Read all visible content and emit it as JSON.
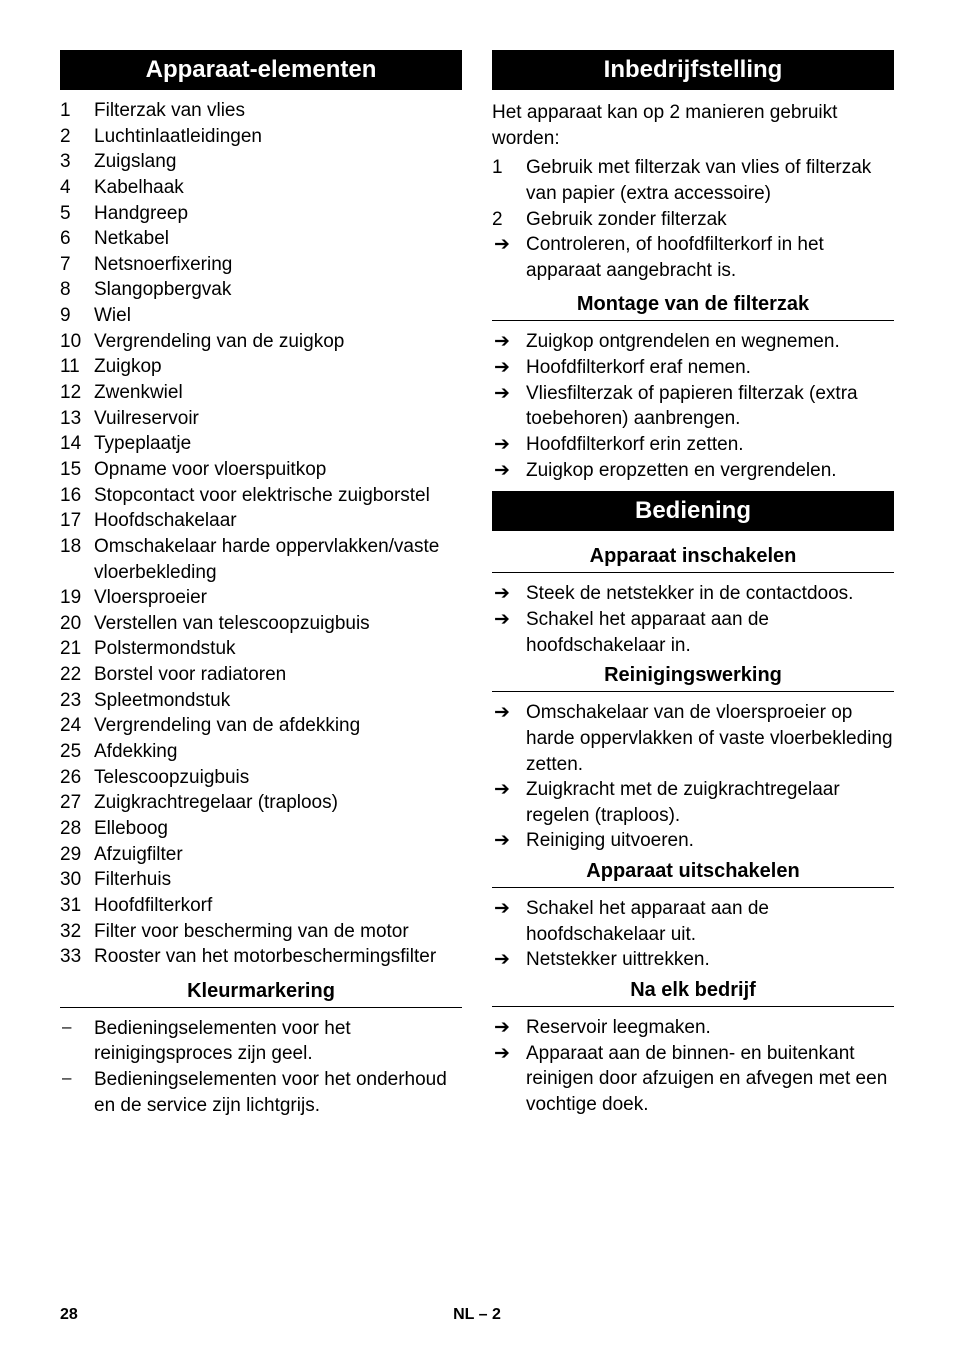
{
  "left": {
    "h1": "Apparaat-elementen",
    "items": [
      "Filterzak van vlies",
      "Luchtinlaatleidingen",
      "Zuigslang",
      "Kabelhaak",
      "Handgreep",
      "Netkabel",
      "Netsnoerfixering",
      "Slangopbergvak",
      "Wiel",
      "Vergrendeling van de zuigkop",
      "Zuigkop",
      "Zwenkwiel",
      "Vuilreservoir",
      "Typeplaatje",
      "Opname voor vloerspuitkop",
      "Stopcontact voor elektrische zuigborstel",
      "Hoofdschakelaar",
      "Omschakelaar harde oppervlakken/vaste vloerbekleding",
      "Vloersproeier",
      "Verstellen van telescoopzuigbuis",
      "Polstermondstuk",
      "Borstel voor radiatoren",
      "Spleetmondstuk",
      "Vergrendeling van de afdekking",
      "Afdekking",
      "Telescoopzuigbuis",
      "Zuigkrachtregelaar (traploos)",
      "Elleboog",
      "Afzuigfilter",
      "Filterhuis",
      "Hoofdfilterkorf",
      "Filter voor bescherming van de motor",
      "Rooster van het motorbeschermingsfilter"
    ],
    "h2": "Kleurmarkering",
    "dashes": [
      "Bedieningselementen voor het reinigingsproces zijn geel.",
      "Bedieningselementen voor het onderhoud en de service zijn lichtgrijs."
    ]
  },
  "right": {
    "h1a": "Inbedrijfstelling",
    "intro": "Het apparaat kan op 2 manieren gebruikt worden:",
    "intro_nums": [
      "Gebruik met filterzak van vlies of filterzak van papier (extra accessoire)",
      "Gebruik zonder filterzak"
    ],
    "intro_arrow": [
      "Controleren, of hoofdfilterkorf in het apparaat aangebracht is."
    ],
    "h2a": "Montage van de filterzak",
    "montage": [
      "Zuigkop ontgrendelen en wegnemen.",
      "Hoofdfilterkorf eraf nemen.",
      "Vliesfilterzak of papieren filterzak (extra toebehoren) aanbrengen.",
      "Hoofdfilterkorf erin zetten.",
      "Zuigkop eropzetten en vergrendelen."
    ],
    "h1b": "Bediening",
    "h2b": "Apparaat inschakelen",
    "insch": [
      "Steek de netstekker in de contactdoos.",
      "Schakel het apparaat aan de hoofdschakelaar in."
    ],
    "h2c": "Reinigingswerking",
    "rein": [
      "Omschakelaar van de vloersproeier op harde oppervlakken of vaste vloerbekleding zetten.",
      "Zuigkracht met de zuigkrachtregelaar regelen (traploos).",
      "Reiniging uitvoeren."
    ],
    "h2d": "Apparaat uitschakelen",
    "uits": [
      "Schakel het apparaat aan de hoofdschakelaar uit.",
      "Netstekker uittrekken."
    ],
    "h2e": "Na elk bedrijf",
    "naelk": [
      "Reservoir leegmaken.",
      "Apparaat aan de binnen- en buitenkant reinigen door afzuigen en afvegen met een vochtige doek."
    ]
  },
  "footer": {
    "page": "28",
    "lang": "NL",
    "sep": "–",
    "sub": "2"
  },
  "glyphs": {
    "arrow": "➔",
    "dash": "–"
  }
}
